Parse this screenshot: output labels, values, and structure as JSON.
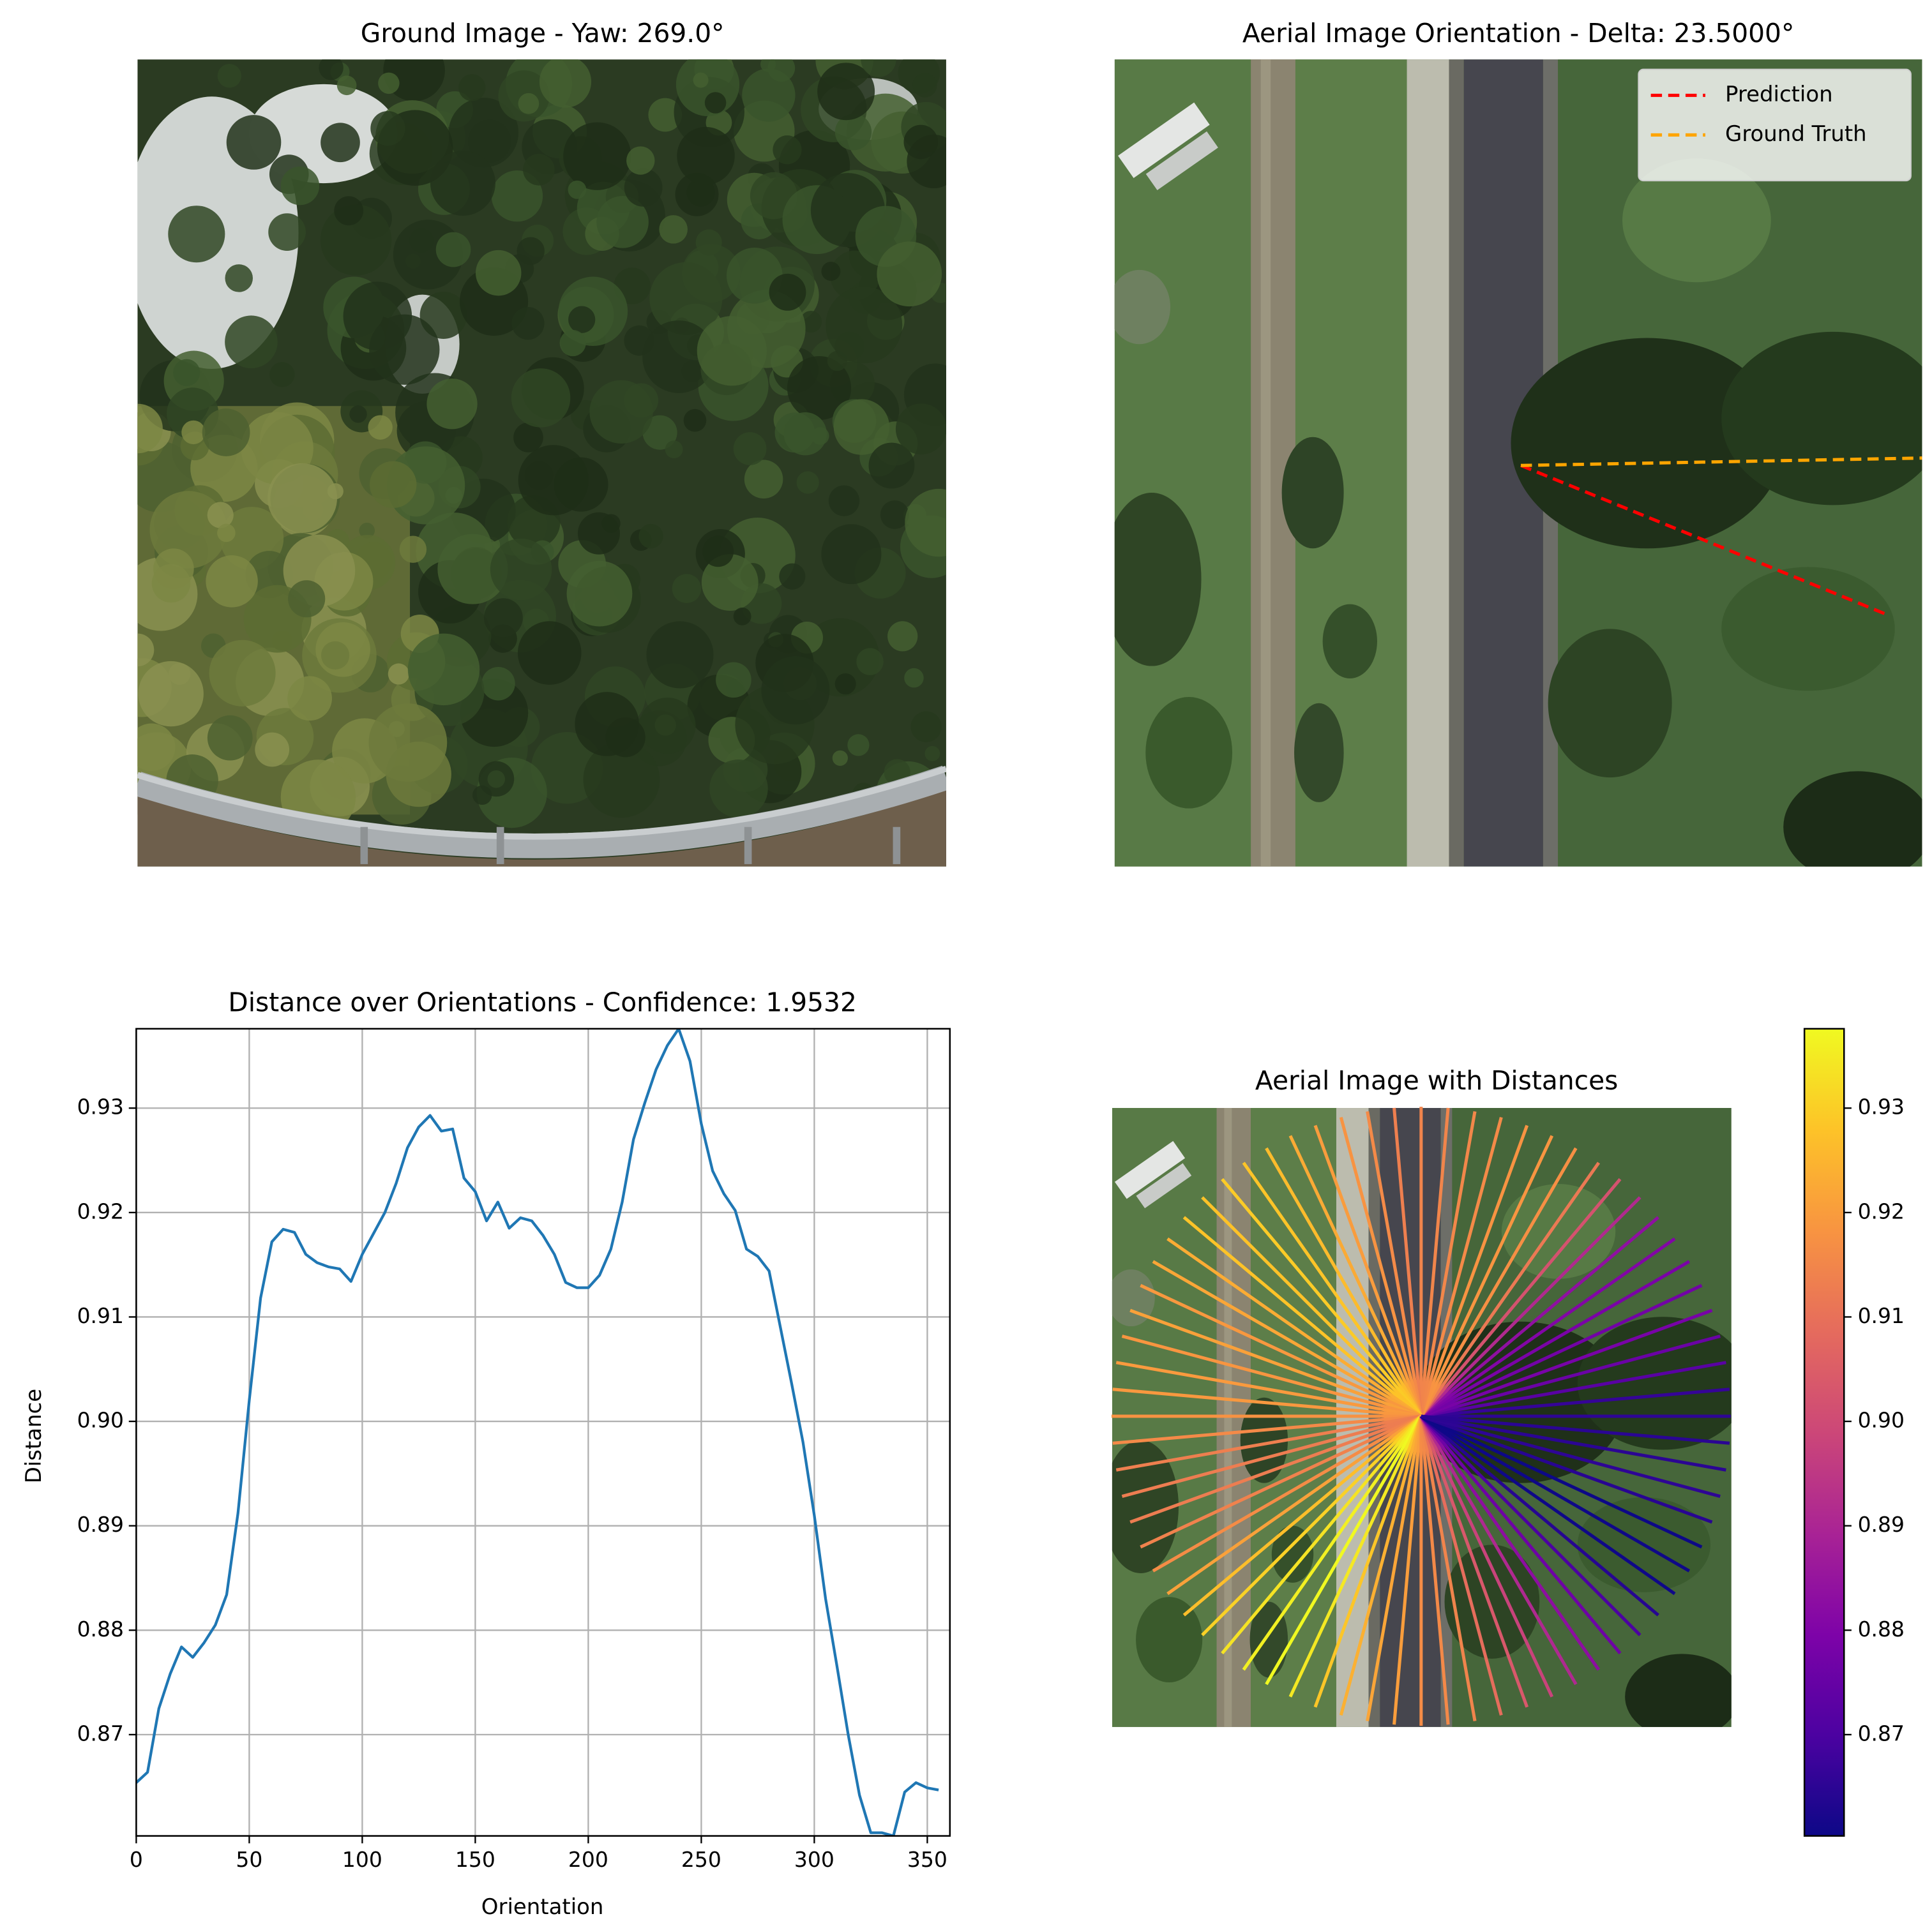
{
  "chart_data": [
    {
      "type": "image",
      "title": "Ground Image - Yaw: 269.0°"
    },
    {
      "type": "image",
      "title": "Aerial Image Orientation - Delta: 23.5000°",
      "legend": "upper right",
      "series": [
        {
          "name": "Prediction",
          "color": "#ff0000",
          "style": "dashed"
        },
        {
          "name": "Ground Truth",
          "color": "#ffa500",
          "style": "dashed"
        }
      ]
    },
    {
      "type": "line",
      "title": "Distance over Orientations - Confidence: 1.9532",
      "xlabel": "Orientation",
      "ylabel": "Distance",
      "x": [
        0,
        5,
        10,
        15,
        20,
        25,
        30,
        35,
        40,
        45,
        50,
        55,
        60,
        65,
        70,
        75,
        80,
        85,
        90,
        95,
        100,
        105,
        110,
        115,
        120,
        125,
        130,
        135,
        140,
        145,
        150,
        155,
        160,
        165,
        170,
        175,
        180,
        185,
        190,
        195,
        200,
        205,
        210,
        215,
        220,
        225,
        230,
        235,
        240,
        245,
        250,
        255,
        260,
        265,
        270,
        275,
        280,
        285,
        290,
        295,
        300,
        305,
        310,
        315,
        320,
        325,
        330,
        335,
        340,
        345,
        350,
        355
      ],
      "values": [
        0.8654,
        0.8664,
        0.8725,
        0.8758,
        0.8784,
        0.8774,
        0.8788,
        0.8805,
        0.8834,
        0.8912,
        0.902,
        0.9118,
        0.9172,
        0.9184,
        0.9181,
        0.916,
        0.9152,
        0.9148,
        0.9146,
        0.9134,
        0.916,
        0.918,
        0.92,
        0.9228,
        0.9262,
        0.9282,
        0.9293,
        0.9278,
        0.928,
        0.9233,
        0.922,
        0.9192,
        0.921,
        0.9185,
        0.9195,
        0.9192,
        0.9178,
        0.916,
        0.9133,
        0.9128,
        0.9128,
        0.914,
        0.9165,
        0.921,
        0.927,
        0.9305,
        0.9337,
        0.936,
        0.9376,
        0.9345,
        0.9285,
        0.924,
        0.9218,
        0.9202,
        0.9165,
        0.9158,
        0.9144,
        0.909,
        0.9036,
        0.898,
        0.891,
        0.883,
        0.8766,
        0.87,
        0.8642,
        0.8606,
        0.8606,
        0.8603,
        0.8645,
        0.8654,
        0.8649,
        0.8647
      ],
      "color": "#1f77b4",
      "xlim": [
        0,
        360
      ],
      "xticks": [
        0,
        50,
        100,
        150,
        200,
        250,
        300,
        350
      ],
      "ylim": [
        0.8603,
        0.9376
      ],
      "yticks": [
        0.87,
        0.88,
        0.89,
        {
          "value": 0.9,
          "label": "0.90"
        },
        0.91,
        0.92,
        0.93
      ],
      "grid": true
    },
    {
      "type": "radial",
      "title": "Aerial Image with Distances",
      "colormap": "plasma",
      "clim": [
        0.8603,
        0.9376
      ],
      "cticks": [
        0.87,
        0.88,
        0.89,
        {
          "value": 0.9,
          "label": "0.90"
        },
        0.91,
        0.92,
        0.93
      ]
    }
  ]
}
